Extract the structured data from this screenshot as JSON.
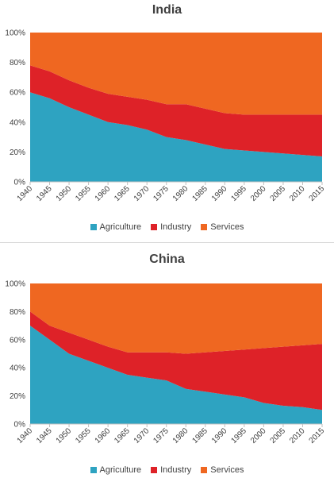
{
  "colors": {
    "Agriculture": "#2ea3c1",
    "Industry": "#de2228",
    "Services": "#ef6721"
  },
  "chart_data": [
    {
      "type": "area",
      "stacked": "percent",
      "title": "India",
      "x": [
        "1940",
        "1945",
        "1950",
        "1955",
        "1960",
        "1965",
        "1970",
        "1975",
        "1980",
        "1985",
        "1990",
        "1995",
        "2000",
        "2005",
        "2010",
        "2015"
      ],
      "y_ticks": [
        "0%",
        "20%",
        "40%",
        "60%",
        "80%",
        "100%"
      ],
      "ylim": [
        0,
        100
      ],
      "legend_position": "bottom",
      "series": [
        {
          "name": "Agriculture",
          "values": [
            60,
            56,
            50,
            45,
            40,
            38,
            35,
            30,
            28,
            25,
            22,
            21,
            20,
            19,
            18,
            17
          ]
        },
        {
          "name": "Industry",
          "values": [
            18,
            18,
            18,
            18,
            19,
            19,
            20,
            22,
            24,
            24,
            24,
            24,
            25,
            26,
            27,
            28
          ]
        },
        {
          "name": "Services",
          "values": [
            22,
            26,
            32,
            37,
            41,
            43,
            45,
            48,
            48,
            51,
            54,
            55,
            55,
            55,
            55,
            55
          ]
        }
      ]
    },
    {
      "type": "area",
      "stacked": "percent",
      "title": "China",
      "x": [
        "1940",
        "1945",
        "1950",
        "1955",
        "1960",
        "1965",
        "1970",
        "1975",
        "1980",
        "1985",
        "1990",
        "1995",
        "2000",
        "2005",
        "2010",
        "2015"
      ],
      "y_ticks": [
        "0%",
        "20%",
        "40%",
        "60%",
        "80%",
        "100%"
      ],
      "ylim": [
        0,
        100
      ],
      "legend_position": "bottom",
      "series": [
        {
          "name": "Agriculture",
          "values": [
            70,
            60,
            50,
            45,
            40,
            35,
            33,
            31,
            25,
            23,
            21,
            19,
            15,
            13,
            12,
            10
          ]
        },
        {
          "name": "Industry",
          "values": [
            10,
            10,
            15,
            15,
            15,
            16,
            18,
            20,
            25,
            28,
            31,
            34,
            39,
            42,
            44,
            47
          ]
        },
        {
          "name": "Services",
          "values": [
            20,
            30,
            35,
            40,
            45,
            49,
            49,
            49,
            50,
            49,
            48,
            47,
            46,
            45,
            44,
            43
          ]
        }
      ]
    }
  ]
}
